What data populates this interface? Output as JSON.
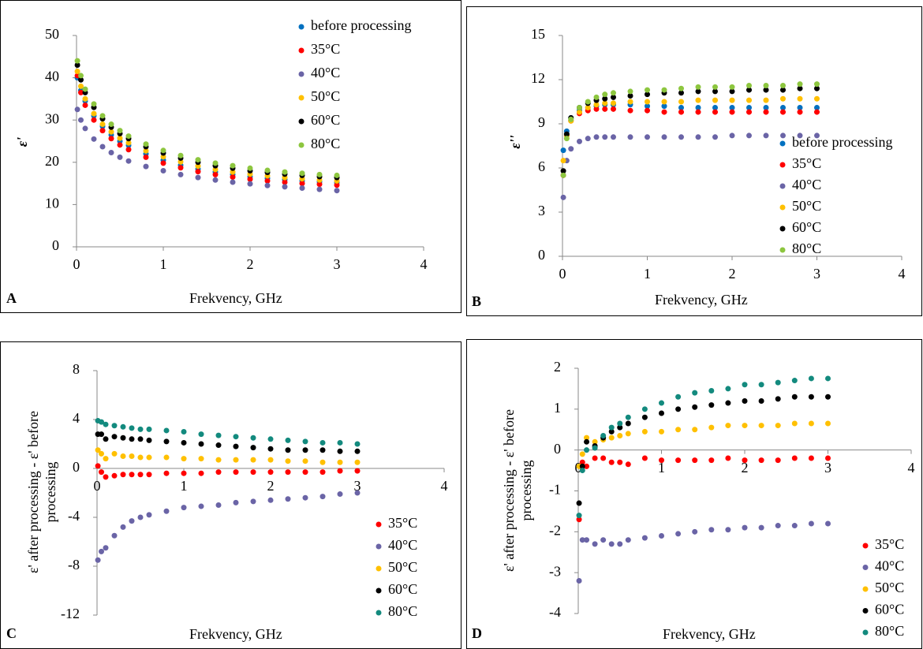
{
  "chart_data": [
    {
      "type": "scatter",
      "label": "A",
      "x_label": "Frekvency, GHz",
      "y_label": "ε'",
      "legend": "upper right",
      "x": [
        0.01,
        0.05,
        0.1,
        0.2,
        0.3,
        0.4,
        0.5,
        0.6,
        0.8,
        1.0,
        1.2,
        1.4,
        1.6,
        1.8,
        2.0,
        2.2,
        2.4,
        2.6,
        2.8,
        3.0
      ],
      "xlim": [
        0,
        4
      ],
      "xticks": [
        0,
        1,
        2,
        3,
        4
      ],
      "ylim": [
        0,
        50
      ],
      "yticks": [
        0,
        10,
        20,
        30,
        40,
        50
      ],
      "series": [
        {
          "name": "before processing",
          "color": "#0070c0",
          "values": [
            40,
            37,
            34.5,
            31,
            28.5,
            26.5,
            25,
            24,
            22,
            20.5,
            19.3,
            18.4,
            17.7,
            17.1,
            16.6,
            16.2,
            15.9,
            15.6,
            15.4,
            15.2
          ]
        },
        {
          "name": "35°C",
          "color": "#ff0000",
          "values": [
            40.5,
            36.5,
            33.5,
            30,
            27.5,
            25.6,
            24.1,
            23,
            21.2,
            19.8,
            18.7,
            17.8,
            17.1,
            16.5,
            16,
            15.6,
            15.3,
            15,
            14.8,
            14.6
          ]
        },
        {
          "name": "40°C",
          "color": "#6a64a6",
          "values": [
            32.5,
            30,
            28,
            25.5,
            23.7,
            22.3,
            21.2,
            20.3,
            19,
            18,
            17.1,
            16.4,
            15.8,
            15.3,
            14.9,
            14.5,
            14.2,
            13.9,
            13.6,
            13.3
          ]
        },
        {
          "name": "50°C",
          "color": "#ffc000",
          "values": [
            41.5,
            38,
            35,
            31.5,
            29,
            27.2,
            25.7,
            24.6,
            22.7,
            21.3,
            20.1,
            19.1,
            18.3,
            17.7,
            17.2,
            16.8,
            16.4,
            16.1,
            15.8,
            15.6
          ]
        },
        {
          "name": "60°C",
          "color": "#000000",
          "values": [
            43,
            39.5,
            36.5,
            33,
            30.3,
            28.3,
            26.8,
            25.6,
            23.7,
            22.2,
            21,
            20,
            19.2,
            18.6,
            18,
            17.6,
            17.2,
            16.9,
            16.6,
            16.4
          ]
        },
        {
          "name": "80°C",
          "color": "#8dc63f",
          "values": [
            44,
            40.5,
            37.3,
            33.8,
            31,
            29,
            27.5,
            26.2,
            24.3,
            22.8,
            21.6,
            20.6,
            19.8,
            19.2,
            18.6,
            18.1,
            17.7,
            17.4,
            17.1,
            16.9
          ]
        }
      ]
    },
    {
      "type": "scatter",
      "label": "B",
      "x_label": "Frekvency, GHz",
      "y_label": "ε''",
      "legend": "center right",
      "x": [
        0.01,
        0.05,
        0.1,
        0.2,
        0.3,
        0.4,
        0.5,
        0.6,
        0.8,
        1.0,
        1.2,
        1.4,
        1.6,
        1.8,
        2.0,
        2.2,
        2.4,
        2.6,
        2.8,
        3.0
      ],
      "xlim": [
        0,
        4
      ],
      "xticks": [
        0,
        1,
        2,
        3,
        4
      ],
      "ylim": [
        0,
        15
      ],
      "yticks": [
        0,
        3,
        6,
        9,
        12,
        15
      ],
      "series": [
        {
          "name": "before processing",
          "color": "#0070c0",
          "values": [
            7.2,
            8.5,
            9.4,
            9.9,
            10.1,
            10.2,
            10.3,
            10.3,
            10.3,
            10.2,
            10.2,
            10.1,
            10.1,
            10.1,
            10.1,
            10.1,
            10.1,
            10.1,
            10.1,
            10.1
          ]
        },
        {
          "name": "35°C",
          "color": "#ff0000",
          "values": [
            5.5,
            8.2,
            9.2,
            9.7,
            9.9,
            10,
            10,
            10,
            9.9,
            9.9,
            9.8,
            9.8,
            9.8,
            9.8,
            9.8,
            9.8,
            9.8,
            9.8,
            9.8,
            9.8
          ]
        },
        {
          "name": "40°C",
          "color": "#6a64a6",
          "values": [
            4,
            6.5,
            7.3,
            7.8,
            8,
            8.1,
            8.1,
            8.1,
            8.1,
            8.1,
            8.1,
            8.1,
            8.1,
            8.1,
            8.2,
            8.2,
            8.2,
            8.2,
            8.2,
            8.2
          ]
        },
        {
          "name": "50°C",
          "color": "#ffc000",
          "values": [
            6.5,
            8.2,
            9.2,
            9.8,
            10.1,
            10.3,
            10.4,
            10.4,
            10.5,
            10.5,
            10.5,
            10.5,
            10.6,
            10.6,
            10.6,
            10.6,
            10.6,
            10.7,
            10.7,
            10.7
          ]
        },
        {
          "name": "60°C",
          "color": "#000000",
          "values": [
            5.8,
            8.3,
            9.4,
            10.1,
            10.4,
            10.6,
            10.7,
            10.8,
            10.9,
            11,
            11.1,
            11.1,
            11.2,
            11.2,
            11.2,
            11.3,
            11.3,
            11.3,
            11.4,
            11.4
          ]
        },
        {
          "name": "80°C",
          "color": "#8dc63f",
          "values": [
            5.5,
            8,
            9.3,
            10.1,
            10.5,
            10.8,
            11,
            11.1,
            11.2,
            11.3,
            11.3,
            11.4,
            11.5,
            11.5,
            11.5,
            11.6,
            11.6,
            11.6,
            11.7,
            11.7
          ]
        }
      ]
    },
    {
      "type": "scatter",
      "label": "C",
      "x_label": "Frekvency, GHz",
      "y_label": "ε' after processing - ε' before processing",
      "legend": "lower right",
      "x": [
        0.01,
        0.05,
        0.1,
        0.2,
        0.3,
        0.4,
        0.5,
        0.6,
        0.8,
        1.0,
        1.2,
        1.4,
        1.6,
        1.8,
        2.0,
        2.2,
        2.4,
        2.6,
        2.8,
        3.0
      ],
      "xlim": [
        0,
        4
      ],
      "xticks": [
        0,
        1,
        2,
        3,
        4
      ],
      "ylim": [
        -12,
        8
      ],
      "yticks": [
        -12,
        -8,
        -4,
        0,
        4,
        8
      ],
      "series": [
        {
          "name": "35°C",
          "color": "#ff0000",
          "values": [
            0.2,
            -0.3,
            -0.7,
            -0.6,
            -0.5,
            -0.5,
            -0.5,
            -0.5,
            -0.4,
            -0.4,
            -0.4,
            -0.3,
            -0.3,
            -0.3,
            -0.3,
            -0.3,
            -0.3,
            -0.3,
            -0.2,
            -0.2
          ]
        },
        {
          "name": "40°C",
          "color": "#6a64a6",
          "values": [
            -7.5,
            -6.8,
            -6.5,
            -5.5,
            -4.8,
            -4.3,
            -4,
            -3.8,
            -3.5,
            -3.2,
            -3.1,
            -3,
            -2.8,
            -2.7,
            -2.6,
            -2.5,
            -2.4,
            -2.3,
            -2.1,
            -2
          ]
        },
        {
          "name": "50°C",
          "color": "#ffc000",
          "values": [
            1.5,
            1.2,
            0.8,
            1.2,
            1,
            1,
            0.9,
            0.9,
            0.9,
            0.8,
            0.8,
            0.7,
            0.7,
            0.7,
            0.7,
            0.6,
            0.6,
            0.5,
            0.5,
            0.5
          ]
        },
        {
          "name": "60°C",
          "color": "#000000",
          "values": [
            2.8,
            2.8,
            2.4,
            2.6,
            2.5,
            2.4,
            2.4,
            2.3,
            2.2,
            2.1,
            2,
            1.9,
            1.8,
            1.7,
            1.6,
            1.5,
            1.5,
            1.5,
            1.4,
            1.4
          ]
        },
        {
          "name": "80°C",
          "color": "#138a7e",
          "values": [
            3.9,
            3.8,
            3.6,
            3.5,
            3.4,
            3.3,
            3.2,
            3.2,
            3.1,
            3,
            2.8,
            2.7,
            2.6,
            2.5,
            2.4,
            2.3,
            2.2,
            2.1,
            2.1,
            2
          ]
        }
      ]
    },
    {
      "type": "scatter",
      "label": "D",
      "x_label": "Frekvency, GHz",
      "y_label": "ε' after processing - ε' before processing",
      "legend": "lower right",
      "x": [
        0.01,
        0.05,
        0.1,
        0.2,
        0.3,
        0.4,
        0.5,
        0.6,
        0.8,
        1.0,
        1.2,
        1.4,
        1.6,
        1.8,
        2.0,
        2.2,
        2.4,
        2.6,
        2.8,
        3.0
      ],
      "xlim": [
        0,
        4
      ],
      "xticks": [
        0,
        1,
        2,
        3,
        4
      ],
      "ylim": [
        -4,
        2
      ],
      "yticks": [
        -4,
        -3,
        -2,
        -1,
        0,
        1,
        2
      ],
      "series": [
        {
          "name": "35°C",
          "color": "#ff0000",
          "values": [
            -1.7,
            -0.3,
            -0.4,
            -0.2,
            -0.2,
            -0.3,
            -0.3,
            -0.35,
            -0.2,
            -0.25,
            -0.25,
            -0.25,
            -0.25,
            -0.2,
            -0.25,
            -0.25,
            -0.25,
            -0.2,
            -0.2,
            -0.2
          ]
        },
        {
          "name": "40°C",
          "color": "#6a64a6",
          "values": [
            -3.2,
            -2.2,
            -2.2,
            -2.3,
            -2.2,
            -2.3,
            -2.3,
            -2.2,
            -2.15,
            -2.1,
            -2.05,
            -2,
            -1.95,
            -1.95,
            -1.9,
            -1.9,
            -1.85,
            -1.85,
            -1.8,
            -1.8
          ]
        },
        {
          "name": "50°C",
          "color": "#ffc000",
          "values": [
            -0.4,
            -0.1,
            0.3,
            0.2,
            0.25,
            0.3,
            0.35,
            0.4,
            0.45,
            0.45,
            0.5,
            0.5,
            0.55,
            0.6,
            0.6,
            0.6,
            0.6,
            0.65,
            0.65,
            0.65
          ]
        },
        {
          "name": "60°C",
          "color": "#000000",
          "values": [
            -1.3,
            -0.4,
            0.2,
            0.1,
            0.3,
            0.45,
            0.55,
            0.65,
            0.8,
            0.9,
            1,
            1.05,
            1.1,
            1.15,
            1.2,
            1.2,
            1.25,
            1.3,
            1.3,
            1.3
          ]
        },
        {
          "name": "80°C",
          "color": "#138a7e",
          "values": [
            -1.6,
            -0.5,
            0,
            0.05,
            0.35,
            0.55,
            0.65,
            0.8,
            1,
            1.15,
            1.3,
            1.4,
            1.45,
            1.5,
            1.6,
            1.6,
            1.65,
            1.7,
            1.75,
            1.75
          ]
        }
      ]
    }
  ]
}
